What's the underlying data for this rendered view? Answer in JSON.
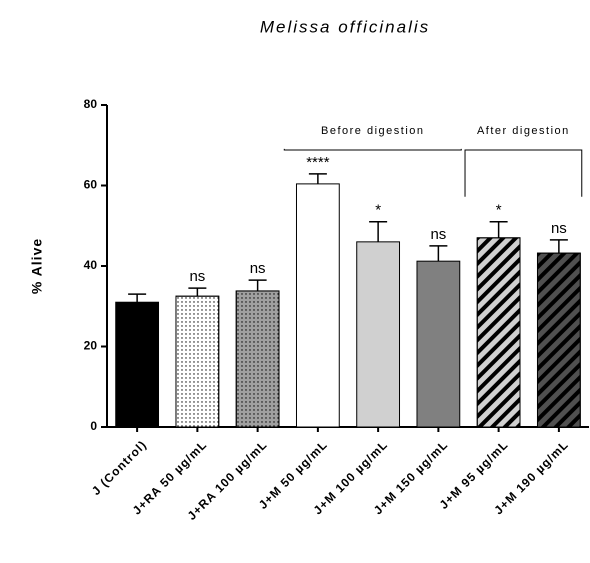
{
  "chart_data": {
    "type": "bar",
    "title": "Melissa officinalis",
    "y_label": "% Alive",
    "categories": [
      "J (Control)",
      "J+RA 50 µg/mL",
      "J+RA 100 µg/mL",
      "J+M 50 µg/mL",
      "J+M 100 µg/mL",
      "J+M 150 µg/mL",
      "J+M 95 µg/mL",
      "J+M 190 µg/mL"
    ],
    "values": [
      31,
      32.5,
      33.8,
      60.4,
      46,
      41.2,
      47,
      43.2
    ],
    "errors": [
      2,
      2,
      2.7,
      2.5,
      5,
      3.8,
      4,
      3.3
    ],
    "annotations": [
      null,
      "ns",
      "ns",
      "****",
      "*",
      "ns",
      "*",
      "ns"
    ],
    "colors": [
      "#000000",
      "#ffffff",
      "#a0a0a0",
      "#ffffff",
      "#d0d0d0",
      "#808080",
      "#d0d0d0",
      "#505050"
    ],
    "patterns": [
      null,
      "dots",
      "dots",
      null,
      null,
      null,
      "stripes",
      "stripes"
    ],
    "brackets": [
      {
        "label": "Before digestion",
        "start": 3,
        "end": 5
      },
      {
        "label": "After digestion",
        "start": 6,
        "end": 7
      }
    ],
    "ylim": [
      0,
      80
    ],
    "yticks": [
      0,
      20,
      40,
      60,
      80
    ]
  }
}
